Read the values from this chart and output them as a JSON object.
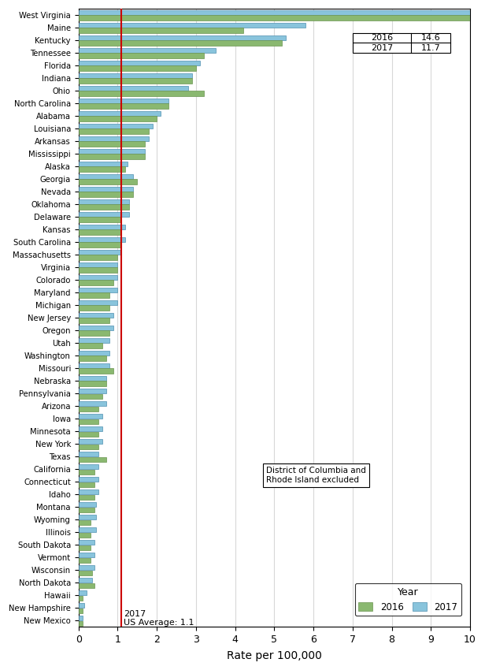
{
  "states": [
    "West Virginia",
    "Maine",
    "Kentucky",
    "Tennessee",
    "Florida",
    "Indiana",
    "Ohio",
    "North Carolina",
    "Alabama",
    "Louisiana",
    "Arkansas",
    "Mississippi",
    "Alaska",
    "Georgia",
    "Nevada",
    "Oklahoma",
    "Delaware",
    "Kansas",
    "South Carolina",
    "Massachusetts",
    "Virginia",
    "Colorado",
    "Maryland",
    "Michigan",
    "New Jersey",
    "Oregon",
    "Utah",
    "Washington",
    "Missouri",
    "Nebraska",
    "Pennsylvania",
    "Arizona",
    "Iowa",
    "Minnesota",
    "New York",
    "Texas",
    "California",
    "Connecticut",
    "Idaho",
    "Montana",
    "Wyoming",
    "Illinois",
    "South Dakota",
    "Vermont",
    "Wisconsin",
    "North Dakota",
    "Hawaii",
    "New Hampshire",
    "New Mexico"
  ],
  "values_2016": [
    14.6,
    4.2,
    5.2,
    3.2,
    3.0,
    2.9,
    3.2,
    2.3,
    2.0,
    1.8,
    1.7,
    1.7,
    1.2,
    1.5,
    1.4,
    1.3,
    1.1,
    1.1,
    1.1,
    1.0,
    1.0,
    0.9,
    0.8,
    0.8,
    0.8,
    0.8,
    0.6,
    0.7,
    0.9,
    0.7,
    0.6,
    0.5,
    0.5,
    0.5,
    0.5,
    0.7,
    0.4,
    0.4,
    0.4,
    0.4,
    0.3,
    0.3,
    0.3,
    0.3,
    0.35,
    0.4,
    0.1,
    0.1,
    0.1
  ],
  "values_2017": [
    11.7,
    5.8,
    5.3,
    3.5,
    3.1,
    2.9,
    2.8,
    2.3,
    2.1,
    1.9,
    1.8,
    1.7,
    1.25,
    1.4,
    1.4,
    1.3,
    1.3,
    1.2,
    1.2,
    1.1,
    1.0,
    1.0,
    1.0,
    1.0,
    0.9,
    0.9,
    0.8,
    0.8,
    0.8,
    0.7,
    0.7,
    0.7,
    0.6,
    0.6,
    0.6,
    0.5,
    0.5,
    0.5,
    0.5,
    0.45,
    0.45,
    0.45,
    0.4,
    0.4,
    0.4,
    0.35,
    0.2,
    0.15,
    0.1
  ],
  "color_2016": "#8ab870",
  "color_2017": "#89c4dc",
  "color_2016_edge": "#6a9450",
  "color_2017_edge": "#5090b0",
  "vline_x": 1.1,
  "vline_color": "#cc0000",
  "xlim": [
    0,
    10
  ],
  "xlabel": "Rate per 100,000",
  "us_avg_label_line1": "2017",
  "us_avg_label_line2": "US Average: 1.1",
  "wv_2017": "11.7",
  "wv_2016": "14.6",
  "background_color": "#ffffff",
  "grid_color": "#d8d8d8",
  "plot_bg": "#ffffff"
}
